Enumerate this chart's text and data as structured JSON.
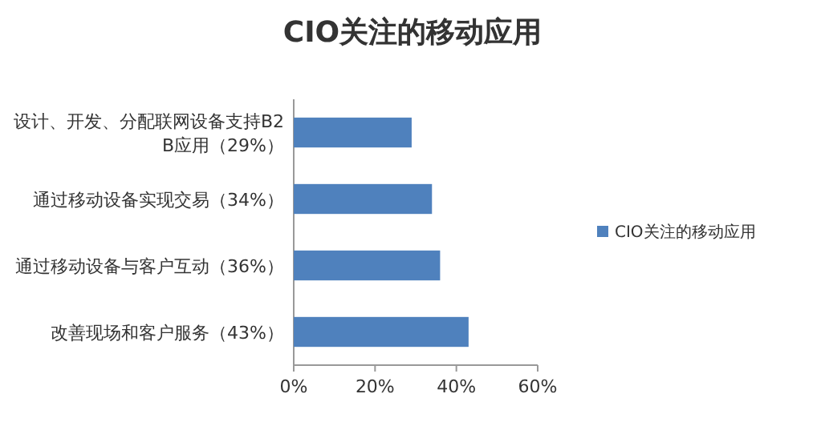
{
  "chart_data": {
    "type": "bar",
    "orientation": "horizontal",
    "title": "CIO关注的移动应用",
    "categories": [
      "设计、开发、分配联网设备支持B2B应用（29%）",
      "通过移动设备实现交易（34%）",
      "通过移动设备与客户互动（36%）",
      "改善现场和客户服务（43%）"
    ],
    "series": [
      {
        "name": "CIO关注的移动应用",
        "color": "#4f81bd",
        "values": [
          29,
          34,
          36,
          43
        ]
      }
    ],
    "xlim": [
      0,
      60
    ],
    "xticks": [
      {
        "value": 0,
        "label": "0%"
      },
      {
        "value": 20,
        "label": "20%"
      },
      {
        "value": 40,
        "label": "40%"
      },
      {
        "value": 60,
        "label": "60%"
      }
    ],
    "legend": "right"
  }
}
